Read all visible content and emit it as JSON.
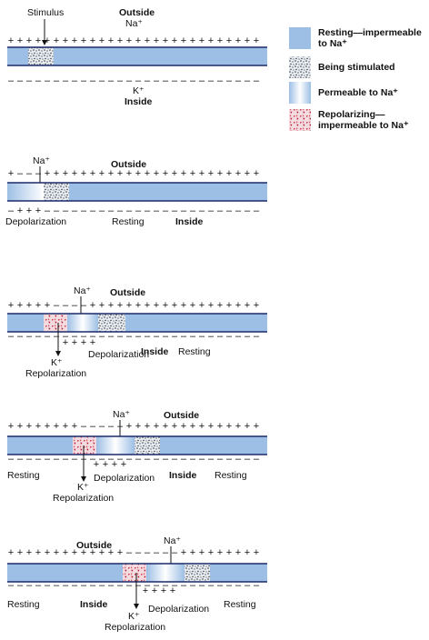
{
  "legend": [
    {
      "key": "resting",
      "label": "Resting—impermeable to Na⁺"
    },
    {
      "key": "stimulated",
      "label": "Being stimulated"
    },
    {
      "key": "permeable",
      "label": "Permeable to Na⁺"
    },
    {
      "key": "repolarizing",
      "label": "Repolarizing— impermeable to Na⁺"
    }
  ],
  "labels": {
    "stimulus": "Stimulus",
    "outside": "Outside",
    "inside": "Inside",
    "na": "Na⁺",
    "k": "K⁺",
    "depolarization": "Depolarization",
    "repolarization": "Repolarization",
    "resting": "Resting"
  },
  "colors": {
    "resting": "#9dbfe5",
    "membrane_edge": "#1b2a6b",
    "repolarizing_dots": "#c0192c",
    "stimulated_dots": "#333333"
  }
}
